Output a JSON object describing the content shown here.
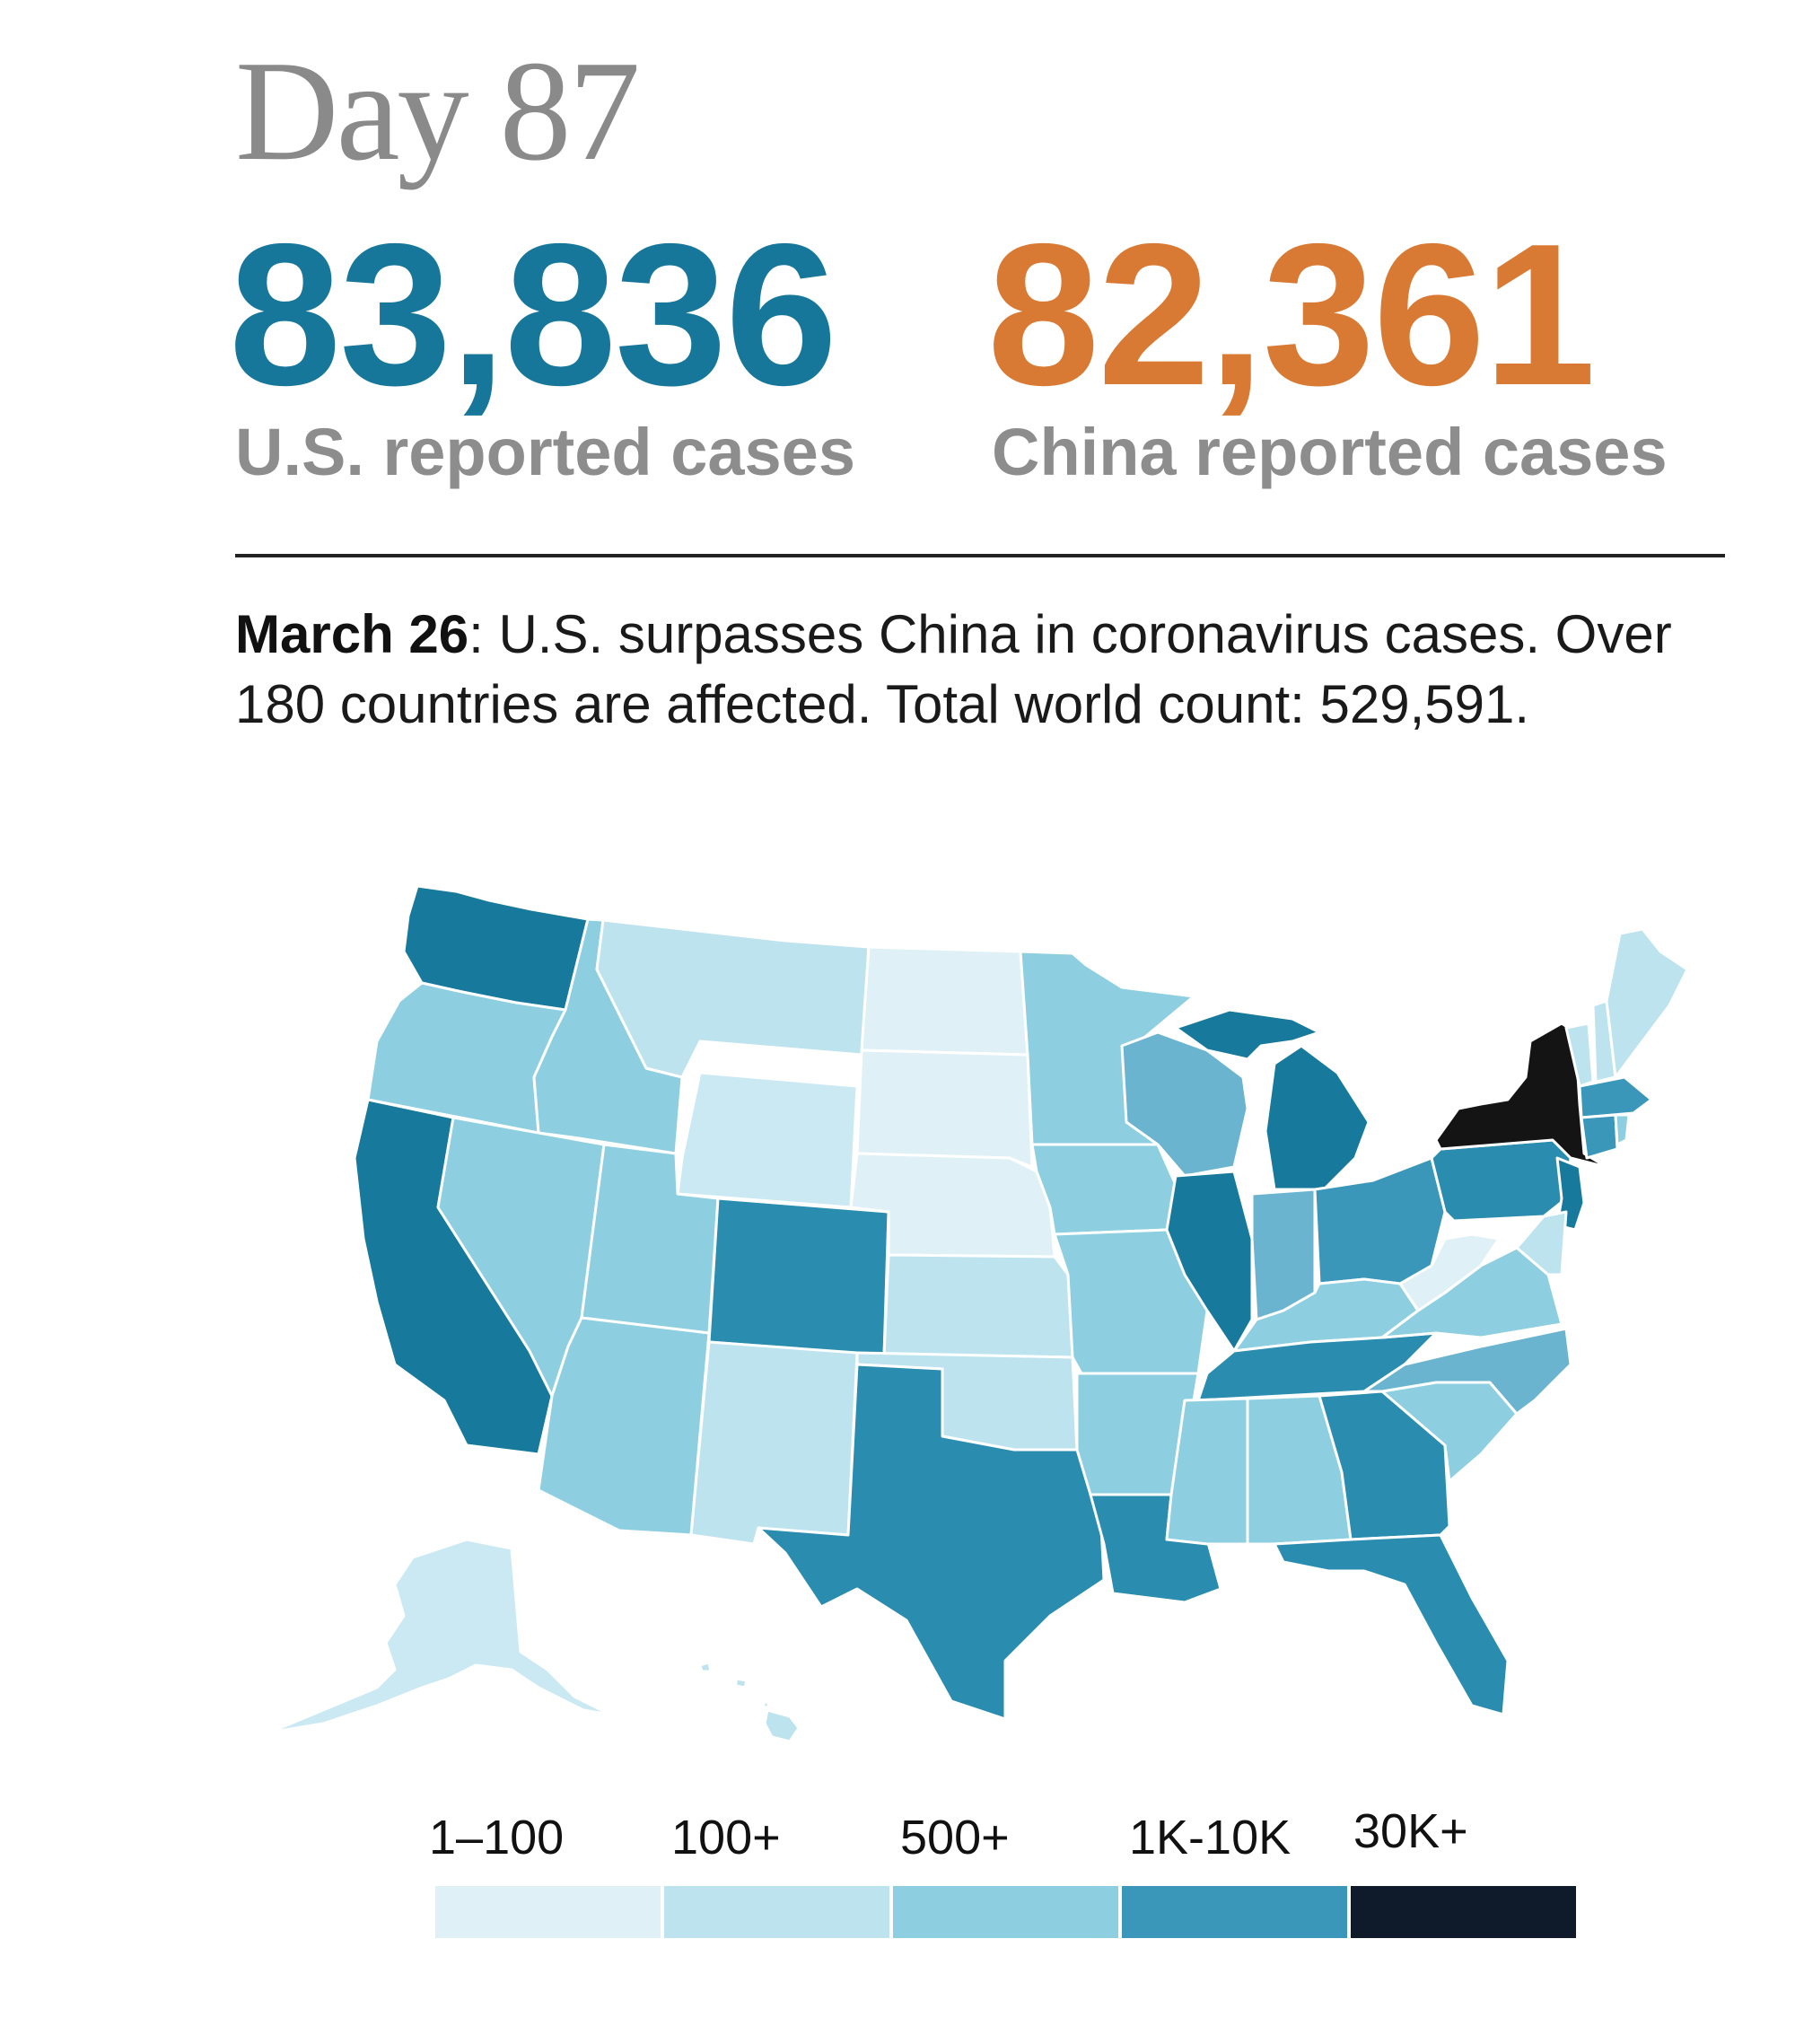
{
  "header": {
    "day_label": "Day 87"
  },
  "stats": {
    "us_count": "83,836",
    "us_label": "U.S. reported cases",
    "china_count": "82,361",
    "china_label": "China reported cases"
  },
  "description": {
    "date": "March 26",
    "text": ": U.S. surpasses China in coronavirus cases. Over 180 countries are affected. Total world count: 529,591."
  },
  "colors": {
    "us_accent": "#17779b",
    "china_accent": "#d97a34",
    "bin_1_100": "#dff1f7",
    "bin_100": "#bde3ef",
    "bin_500": "#8dcfe0",
    "bin_1k_10k": "#3a97ba",
    "bin_30k": "#0f1a2a"
  },
  "legend": {
    "items": [
      {
        "label": "1–100",
        "color": "#dff1f7"
      },
      {
        "label": "100+",
        "color": "#bde3ef"
      },
      {
        "label": "500+",
        "color": "#8dcfe0"
      },
      {
        "label": "1K-10K",
        "color": "#3a97ba"
      },
      {
        "label": "30K+",
        "color": "#0f1a2a"
      }
    ]
  }
}
